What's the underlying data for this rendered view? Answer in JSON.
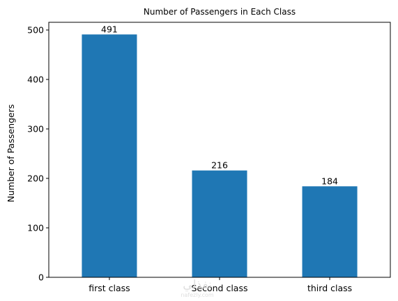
{
  "chart_data": {
    "type": "bar",
    "title": "Number of Passengers in Each Class",
    "xlabel": "",
    "ylabel": "Number of Passengers",
    "categories": [
      "first class",
      "Second class",
      "third class"
    ],
    "values": [
      491,
      216,
      184
    ],
    "data_labels": [
      "491",
      "216",
      "184"
    ],
    "yticks": [
      0,
      100,
      200,
      300,
      400,
      500
    ],
    "ylim": [
      0,
      515.55
    ],
    "bar_color": "#1f77b4",
    "grid": false,
    "legend": "none"
  },
  "watermark": {
    "text": "نفذلي",
    "subtext": "nafezly.com"
  }
}
